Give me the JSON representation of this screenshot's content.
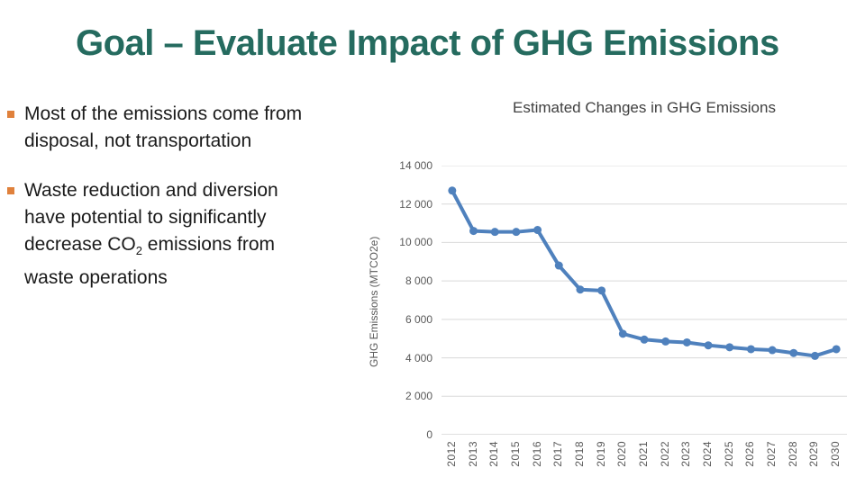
{
  "slide": {
    "title": "Goal – Evaluate Impact of GHG Emissions",
    "bullets": [
      {
        "pre": "Most of the emissions come from disposal, not transportation",
        "sub": "",
        "post": ""
      },
      {
        "pre": "Waste reduction and diversion have potential to significantly decrease CO",
        "sub": "2",
        "post": " emissions from waste operations"
      }
    ]
  },
  "colors": {
    "title_color": "#256B5F",
    "bullet_marker": "#E0813C",
    "body_text": "#1a1a1a",
    "line": "#4F81BD",
    "gridline": "#D9D9D9",
    "axis_line": "#BFBFBF",
    "axis_text": "#595959",
    "chart_title_color": "#404040"
  },
  "chart_data": {
    "type": "line",
    "title": "Estimated Changes in GHG Emissions",
    "ylabel": "GHG Emissions (MTCO2e)",
    "xlabel": "",
    "categories": [
      "2012",
      "2013",
      "2014",
      "2015",
      "2016",
      "2017",
      "2018",
      "2019",
      "2020",
      "2021",
      "2022",
      "2023",
      "2024",
      "2025",
      "2026",
      "2027",
      "2028",
      "2029",
      "2030"
    ],
    "values": [
      12700,
      10600,
      10550,
      10550,
      10650,
      8800,
      7550,
      7500,
      5250,
      4950,
      4850,
      4800,
      4650,
      4550,
      4450,
      4400,
      4250,
      4100,
      4450
    ],
    "ylim": [
      0,
      14000
    ],
    "ytick_values": [
      0,
      2000,
      4000,
      6000,
      8000,
      10000,
      12000,
      14000
    ],
    "ytick_labels": [
      "0",
      "2 000",
      "4 000",
      "6 000",
      "8 000",
      "10 000",
      "12 000",
      "14 000"
    ],
    "grid": "horizontal",
    "legend": "none",
    "marker": "circle"
  }
}
